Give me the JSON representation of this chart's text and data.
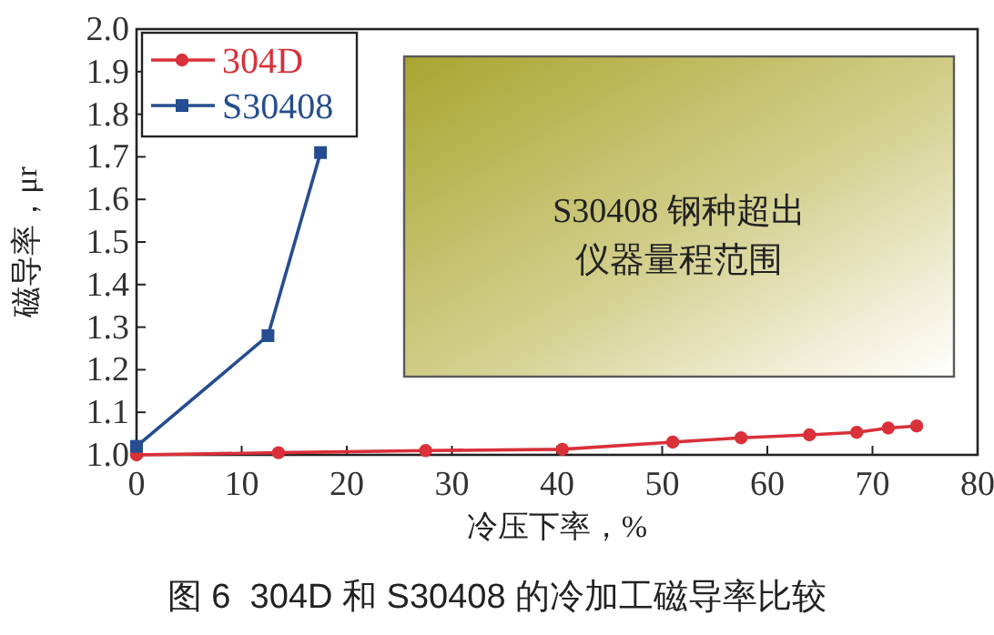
{
  "chart_data": {
    "type": "line",
    "xlabel": "冷压下率，%",
    "ylabel": "磁导率，μr",
    "x": [
      0,
      13.5,
      27.5,
      40.5,
      51,
      57.5,
      64,
      68.5,
      71.5,
      74.2
    ],
    "series": [
      {
        "name": "304D",
        "color": "#d9303a",
        "marker": "circle",
        "values": [
          1.0,
          1.005,
          1.01,
          1.013,
          1.03,
          1.04,
          1.047,
          1.053,
          1.063,
          1.068
        ]
      },
      {
        "name": "S30408",
        "color": "#254d8f",
        "marker": "square",
        "x": [
          0,
          12.5,
          17.5
        ],
        "values": [
          1.02,
          1.28,
          1.71
        ]
      }
    ],
    "xlim": [
      0,
      80
    ],
    "xticks": [
      0,
      10,
      20,
      30,
      40,
      50,
      60,
      70,
      80
    ],
    "ylim": [
      1.0,
      2.0
    ],
    "yticks": [
      {
        "value": 1.0,
        "label": "1.0"
      },
      1.1,
      1.2,
      1.3,
      1.4,
      1.5,
      1.6,
      1.7,
      1.8,
      1.9,
      {
        "value": 2.0,
        "label": "2.0"
      }
    ],
    "legend": "top left",
    "grid": false,
    "line_style": "solid",
    "annotations": [
      "S30408 钢种超出",
      "仪器量程范围",
      "图 6  304D 和 S30408 的冷加工磁导率比较"
    ]
  }
}
